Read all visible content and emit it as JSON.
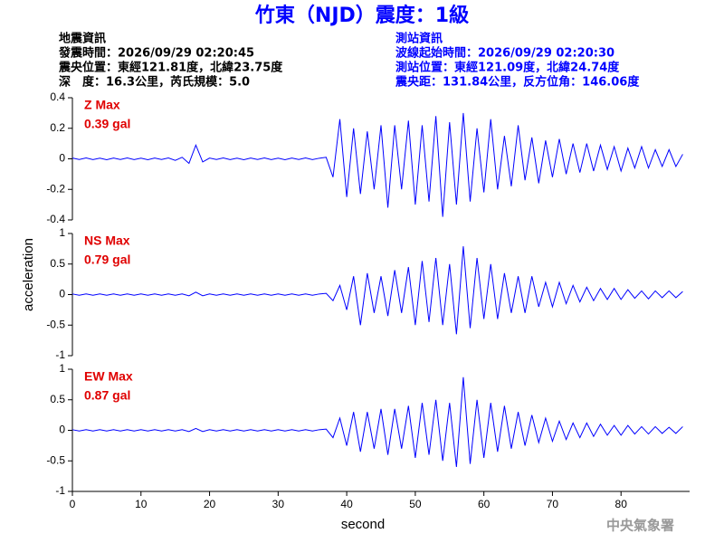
{
  "title": "竹東（NJD）震度：1級",
  "info_left": [
    "地震資訊",
    "發震時間：2026/09/29 02:20:45",
    "震央位置：東經121.81度，北緯23.75度",
    "深　度：16.3公里，芮氏規模：5.0"
  ],
  "info_right": [
    "測站資訊",
    "波線起始時間：2026/09/29 02:20:30",
    "測站位置：東經121.09度，北緯24.74度",
    "震央距：131.84公里，反方位角：146.06度"
  ],
  "footer": "中央氣象署",
  "chart_data": [
    {
      "type": "line",
      "annotation": [
        "Z Max",
        "0.39 gal"
      ],
      "color": "#0000ff",
      "xlim": [
        0,
        90
      ],
      "ylim": [
        -0.4,
        0.4
      ],
      "yticks": [
        0.4,
        0.2,
        0,
        -0.2,
        -0.4
      ],
      "x": [
        0,
        1,
        2,
        3,
        4,
        5,
        6,
        7,
        8,
        9,
        10,
        11,
        12,
        13,
        14,
        15,
        16,
        17,
        18,
        19,
        20,
        21,
        22,
        23,
        24,
        25,
        26,
        27,
        28,
        29,
        30,
        31,
        32,
        33,
        34,
        35,
        36,
        37,
        38,
        39,
        40,
        41,
        42,
        43,
        44,
        45,
        46,
        47,
        48,
        49,
        50,
        51,
        52,
        53,
        54,
        55,
        56,
        57,
        58,
        59,
        60,
        61,
        62,
        63,
        64,
        65,
        66,
        67,
        68,
        69,
        70,
        71,
        72,
        73,
        74,
        75,
        76,
        77,
        78,
        79,
        80,
        81,
        82,
        83,
        84,
        85,
        86,
        87,
        88,
        89
      ],
      "values": [
        0.005,
        -0.004,
        0.006,
        -0.005,
        0.004,
        -0.006,
        0.005,
        -0.004,
        0.006,
        -0.005,
        0.004,
        -0.006,
        0.005,
        -0.004,
        0.006,
        -0.01,
        0.01,
        -0.03,
        0.09,
        -0.02,
        0.005,
        -0.004,
        0.006,
        -0.005,
        0.004,
        -0.006,
        0.005,
        -0.004,
        0.006,
        -0.005,
        0.004,
        -0.006,
        0.005,
        -0.004,
        0.006,
        -0.005,
        0.004,
        0.01,
        -0.12,
        0.26,
        -0.25,
        0.2,
        -0.23,
        0.18,
        -0.2,
        0.22,
        -0.32,
        0.22,
        -0.2,
        0.25,
        -0.3,
        0.22,
        -0.28,
        0.28,
        -0.38,
        0.24,
        -0.3,
        0.3,
        -0.28,
        0.2,
        -0.22,
        0.26,
        -0.2,
        0.15,
        -0.18,
        0.22,
        -0.14,
        0.14,
        -0.16,
        0.12,
        -0.12,
        0.13,
        -0.1,
        0.1,
        -0.09,
        0.1,
        -0.08,
        0.09,
        -0.07,
        0.08,
        -0.08,
        0.07,
        -0.06,
        0.08,
        -0.06,
        0.06,
        -0.05,
        0.06,
        -0.05,
        0.03
      ]
    },
    {
      "type": "line",
      "annotation": [
        "NS Max",
        "0.79 gal"
      ],
      "color": "#0000ff",
      "ylabel": "acceleration",
      "xlim": [
        0,
        90
      ],
      "ylim": [
        -1,
        1
      ],
      "yticks": [
        1,
        0.5,
        0,
        -0.5,
        -1
      ],
      "x": [
        0,
        1,
        2,
        3,
        4,
        5,
        6,
        7,
        8,
        9,
        10,
        11,
        12,
        13,
        14,
        15,
        16,
        17,
        18,
        19,
        20,
        21,
        22,
        23,
        24,
        25,
        26,
        27,
        28,
        29,
        30,
        31,
        32,
        33,
        34,
        35,
        36,
        37,
        38,
        39,
        40,
        41,
        42,
        43,
        44,
        45,
        46,
        47,
        48,
        49,
        50,
        51,
        52,
        53,
        54,
        55,
        56,
        57,
        58,
        59,
        60,
        61,
        62,
        63,
        64,
        65,
        66,
        67,
        68,
        69,
        70,
        71,
        72,
        73,
        74,
        75,
        76,
        77,
        78,
        79,
        80,
        81,
        82,
        83,
        84,
        85,
        86,
        87,
        88,
        89
      ],
      "values": [
        0.01,
        -0.01,
        0.01,
        -0.01,
        0.01,
        -0.01,
        0.01,
        -0.01,
        0.01,
        -0.01,
        0.01,
        -0.01,
        0.01,
        -0.01,
        0.01,
        -0.01,
        0.01,
        -0.02,
        0.04,
        -0.02,
        0.01,
        -0.01,
        0.01,
        -0.01,
        0.01,
        -0.01,
        0.01,
        -0.01,
        0.01,
        -0.01,
        0.01,
        -0.01,
        0.01,
        -0.01,
        0.01,
        -0.01,
        0.01,
        0.02,
        -0.1,
        0.15,
        -0.25,
        0.3,
        -0.5,
        0.35,
        -0.3,
        0.3,
        -0.35,
        0.4,
        -0.3,
        0.45,
        -0.5,
        0.55,
        -0.45,
        0.6,
        -0.5,
        0.5,
        -0.65,
        0.79,
        -0.55,
        0.6,
        -0.4,
        0.5,
        -0.4,
        0.35,
        -0.3,
        0.3,
        -0.3,
        0.3,
        -0.2,
        0.2,
        -0.2,
        0.2,
        -0.15,
        0.15,
        -0.12,
        0.12,
        -0.1,
        0.1,
        -0.08,
        0.1,
        -0.08,
        0.08,
        -0.06,
        0.06,
        -0.07,
        0.06,
        -0.05,
        0.06,
        -0.05,
        0.05
      ]
    },
    {
      "type": "line",
      "annotation": [
        "EW Max",
        "0.87 gal"
      ],
      "color": "#0000ff",
      "xlabel": "second",
      "xlim": [
        0,
        90
      ],
      "xticks": [
        0,
        10,
        20,
        30,
        40,
        50,
        60,
        70,
        80
      ],
      "ylim": [
        -1,
        1
      ],
      "yticks": [
        1,
        0.5,
        0,
        -0.5,
        -1
      ],
      "x": [
        0,
        1,
        2,
        3,
        4,
        5,
        6,
        7,
        8,
        9,
        10,
        11,
        12,
        13,
        14,
        15,
        16,
        17,
        18,
        19,
        20,
        21,
        22,
        23,
        24,
        25,
        26,
        27,
        28,
        29,
        30,
        31,
        32,
        33,
        34,
        35,
        36,
        37,
        38,
        39,
        40,
        41,
        42,
        43,
        44,
        45,
        46,
        47,
        48,
        49,
        50,
        51,
        52,
        53,
        54,
        55,
        56,
        57,
        58,
        59,
        60,
        61,
        62,
        63,
        64,
        65,
        66,
        67,
        68,
        69,
        70,
        71,
        72,
        73,
        74,
        75,
        76,
        77,
        78,
        79,
        80,
        81,
        82,
        83,
        84,
        85,
        86,
        87,
        88,
        89
      ],
      "values": [
        0.01,
        -0.01,
        0.01,
        -0.01,
        0.01,
        -0.01,
        0.01,
        -0.01,
        0.01,
        -0.01,
        0.01,
        -0.01,
        0.01,
        -0.01,
        0.01,
        -0.01,
        0.01,
        -0.02,
        0.03,
        -0.02,
        0.01,
        -0.01,
        0.01,
        -0.01,
        0.01,
        -0.01,
        0.01,
        -0.01,
        0.01,
        -0.01,
        0.01,
        -0.01,
        0.01,
        -0.01,
        0.01,
        -0.01,
        0.01,
        0.02,
        -0.12,
        0.2,
        -0.25,
        0.3,
        -0.35,
        0.3,
        -0.3,
        0.35,
        -0.4,
        0.35,
        -0.3,
        0.4,
        -0.45,
        0.45,
        -0.4,
        0.5,
        -0.5,
        0.45,
        -0.6,
        0.87,
        -0.55,
        0.5,
        -0.45,
        0.45,
        -0.35,
        0.4,
        -0.3,
        0.3,
        -0.25,
        0.25,
        -0.2,
        0.2,
        -0.18,
        0.15,
        -0.15,
        0.12,
        -0.12,
        0.12,
        -0.1,
        0.1,
        -0.08,
        0.08,
        -0.08,
        0.08,
        -0.06,
        0.06,
        -0.06,
        0.06,
        -0.05,
        0.05,
        -0.05,
        0.06
      ]
    }
  ]
}
